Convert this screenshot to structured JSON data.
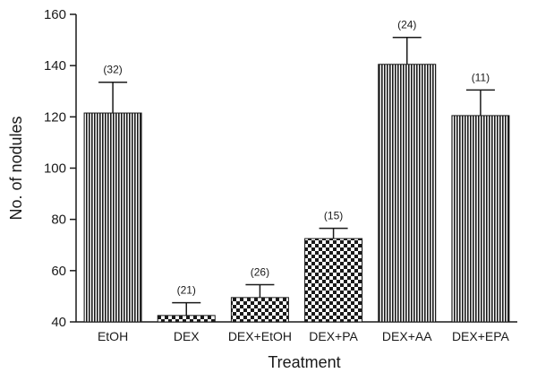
{
  "chart_data": {
    "type": "bar",
    "title": "",
    "xlabel": "Treatment",
    "ylabel": "No. of nodules",
    "ylim": [
      40,
      160
    ],
    "yticks": [
      40,
      60,
      80,
      100,
      120,
      140,
      160
    ],
    "grid": false,
    "categories": [
      "EtOH",
      "DEX",
      "DEX+EtOH",
      "DEX+PA",
      "DEX+AA",
      "DEX+EPA"
    ],
    "values": [
      121.5,
      42.5,
      49.5,
      72.5,
      140.5,
      120.5
    ],
    "error_upper": [
      133.5,
      47.5,
      54.5,
      76.5,
      151.0,
      130.5
    ],
    "n_labels": [
      "(32)",
      "(21)",
      "(26)",
      "(15)",
      "(24)",
      "(11)"
    ],
    "fill_patterns": [
      "vertical-lines",
      "checker",
      "checker",
      "checker",
      "vertical-lines",
      "vertical-lines"
    ],
    "colors": {
      "ink": "#1a1a1a",
      "background": "#ffffff"
    }
  }
}
